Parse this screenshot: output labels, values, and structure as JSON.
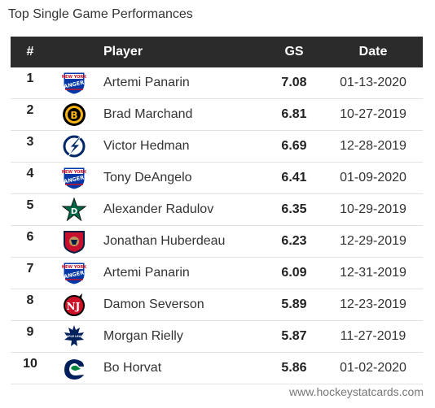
{
  "title": "Top Single Game Performances",
  "headers": {
    "rank": "#",
    "player": "Player",
    "gs": "GS",
    "date": "Date"
  },
  "rows": [
    {
      "rank": "1",
      "player": "Artemi Panarin",
      "gs": "7.08",
      "date": "01-13-2020",
      "team_icon": "rangers-logo-icon"
    },
    {
      "rank": "2",
      "player": "Brad Marchand",
      "gs": "6.81",
      "date": "10-27-2019",
      "team_icon": "bruins-logo-icon"
    },
    {
      "rank": "3",
      "player": "Victor Hedman",
      "gs": "6.69",
      "date": "12-28-2019",
      "team_icon": "lightning-logo-icon"
    },
    {
      "rank": "4",
      "player": "Tony DeAngelo",
      "gs": "6.41",
      "date": "01-09-2020",
      "team_icon": "rangers-logo-icon"
    },
    {
      "rank": "5",
      "player": "Alexander Radulov",
      "gs": "6.35",
      "date": "10-29-2019",
      "team_icon": "stars-logo-icon"
    },
    {
      "rank": "6",
      "player": "Jonathan Huberdeau",
      "gs": "6.23",
      "date": "12-29-2019",
      "team_icon": "panthers-logo-icon"
    },
    {
      "rank": "7",
      "player": "Artemi Panarin",
      "gs": "6.09",
      "date": "12-31-2019",
      "team_icon": "rangers-logo-icon"
    },
    {
      "rank": "8",
      "player": "Damon Severson",
      "gs": "5.89",
      "date": "12-23-2019",
      "team_icon": "devils-logo-icon"
    },
    {
      "rank": "9",
      "player": "Morgan Rielly",
      "gs": "5.87",
      "date": "11-27-2019",
      "team_icon": "maple-leafs-logo-icon"
    },
    {
      "rank": "10",
      "player": "Bo Horvat",
      "gs": "5.86",
      "date": "01-02-2020",
      "team_icon": "canucks-logo-icon"
    }
  ],
  "footer": "www.hockeystatcards.com",
  "colors": {
    "header_bg": "#2b2b2b",
    "header_text": "#ffffff",
    "row_border": "#e2e2e2"
  }
}
